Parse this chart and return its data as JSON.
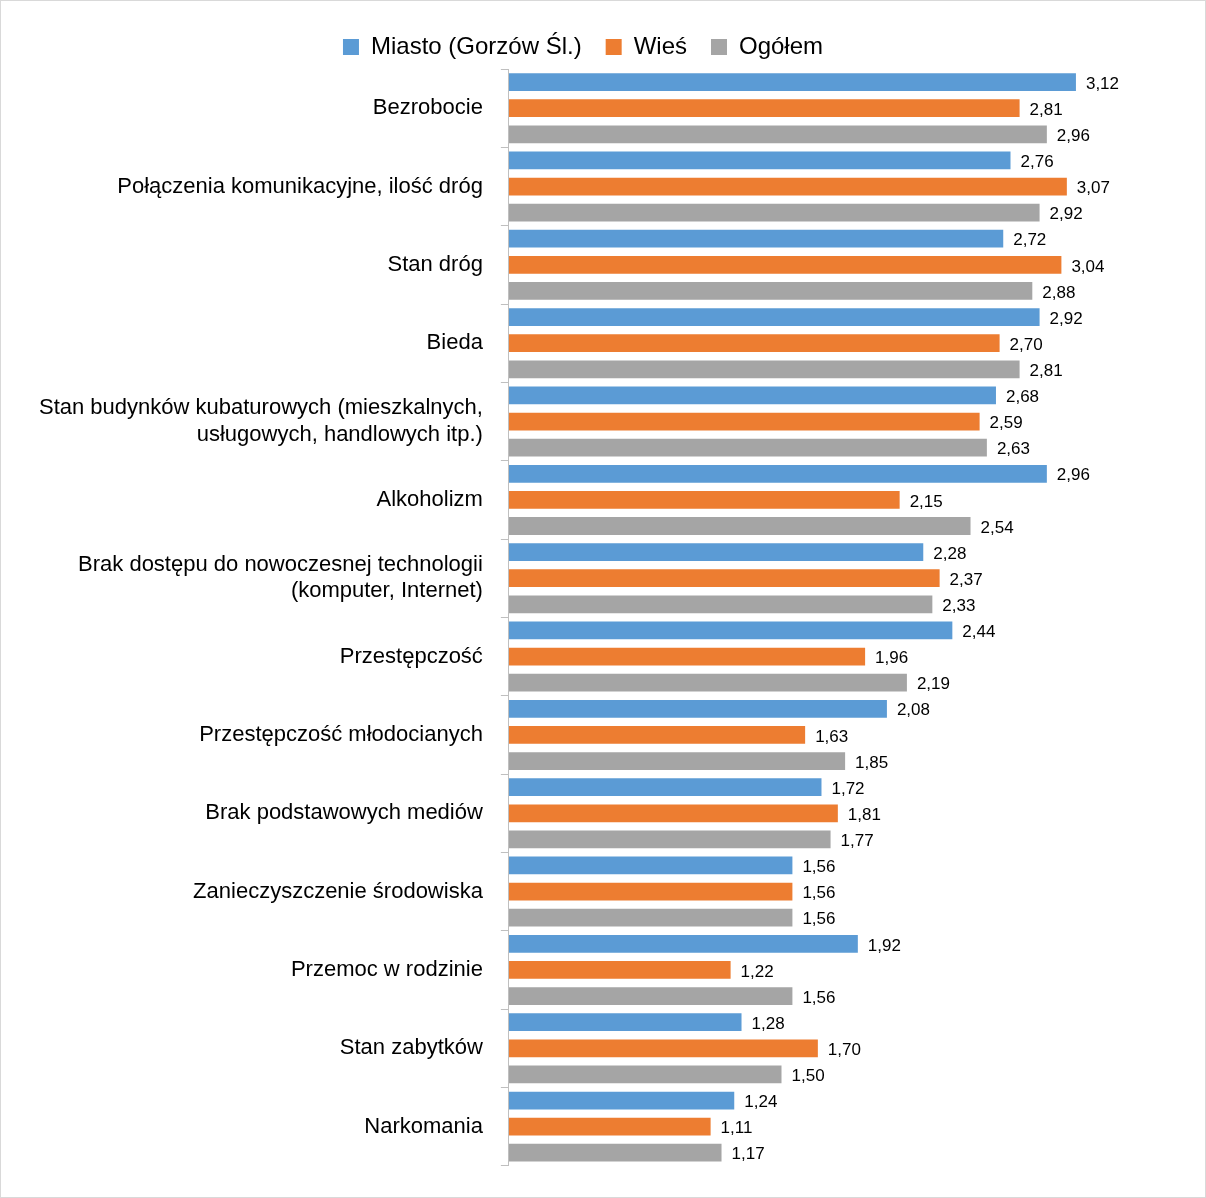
{
  "chart_data": {
    "type": "bar",
    "orientation": "horizontal",
    "legend": "top",
    "grid": false,
    "tick_labels": "y",
    "categories": [
      "Bezrobocie",
      "Połączenia komunikacyjne, ilość dróg",
      "Stan dróg",
      "Bieda",
      "Stan budynków kubaturowych (mieszkalnych, usługowych, handlowych itp.)",
      "Alkoholizm",
      "Brak dostępu do nowoczesnej technologii (komputer, Internet)",
      "Przestępczość",
      "Przestępczość młodocianych",
      "Brak podstawowych mediów",
      "Zanieczyszczenie środowiska",
      "Przemoc w rodzinie",
      "Stan zabytków",
      "Narkomania"
    ],
    "series": [
      {
        "name": "Miasto (Gorzów Śl.)",
        "color": "#5b9bd5",
        "values": [
          3.12,
          2.76,
          2.72,
          2.92,
          2.68,
          2.96,
          2.28,
          2.44,
          2.08,
          1.72,
          1.56,
          1.92,
          1.28,
          1.24
        ],
        "value_labels": [
          "3,12",
          "2,76",
          "2,72",
          "2,92",
          "2,68",
          "2,96",
          "2,28",
          "2,44",
          "2,08",
          "1,72",
          "1,56",
          "1,92",
          "1,28",
          "1,24"
        ]
      },
      {
        "name": "Wieś",
        "color": "#ed7d31",
        "values": [
          2.81,
          3.07,
          3.04,
          2.7,
          2.59,
          2.15,
          2.37,
          1.96,
          1.63,
          1.81,
          1.56,
          1.22,
          1.7,
          1.11
        ],
        "value_labels": [
          "2,81",
          "3,07",
          "3,04",
          "2,70",
          "2,59",
          "2,15",
          "2,37",
          "1,96",
          "1,63",
          "1,81",
          "1,56",
          "1,22",
          "1,70",
          "1,11"
        ]
      },
      {
        "name": "Ogółem",
        "color": "#a5a5a5",
        "values": [
          2.96,
          2.92,
          2.88,
          2.81,
          2.63,
          2.54,
          2.33,
          2.19,
          1.85,
          1.77,
          1.56,
          1.56,
          1.5,
          1.17
        ],
        "value_labels": [
          "2,96",
          "2,92",
          "2,88",
          "2,81",
          "2,63",
          "2,54",
          "2,33",
          "2,19",
          "1,85",
          "1,77",
          "1,56",
          "1,56",
          "1,50",
          "1,17"
        ]
      }
    ]
  }
}
